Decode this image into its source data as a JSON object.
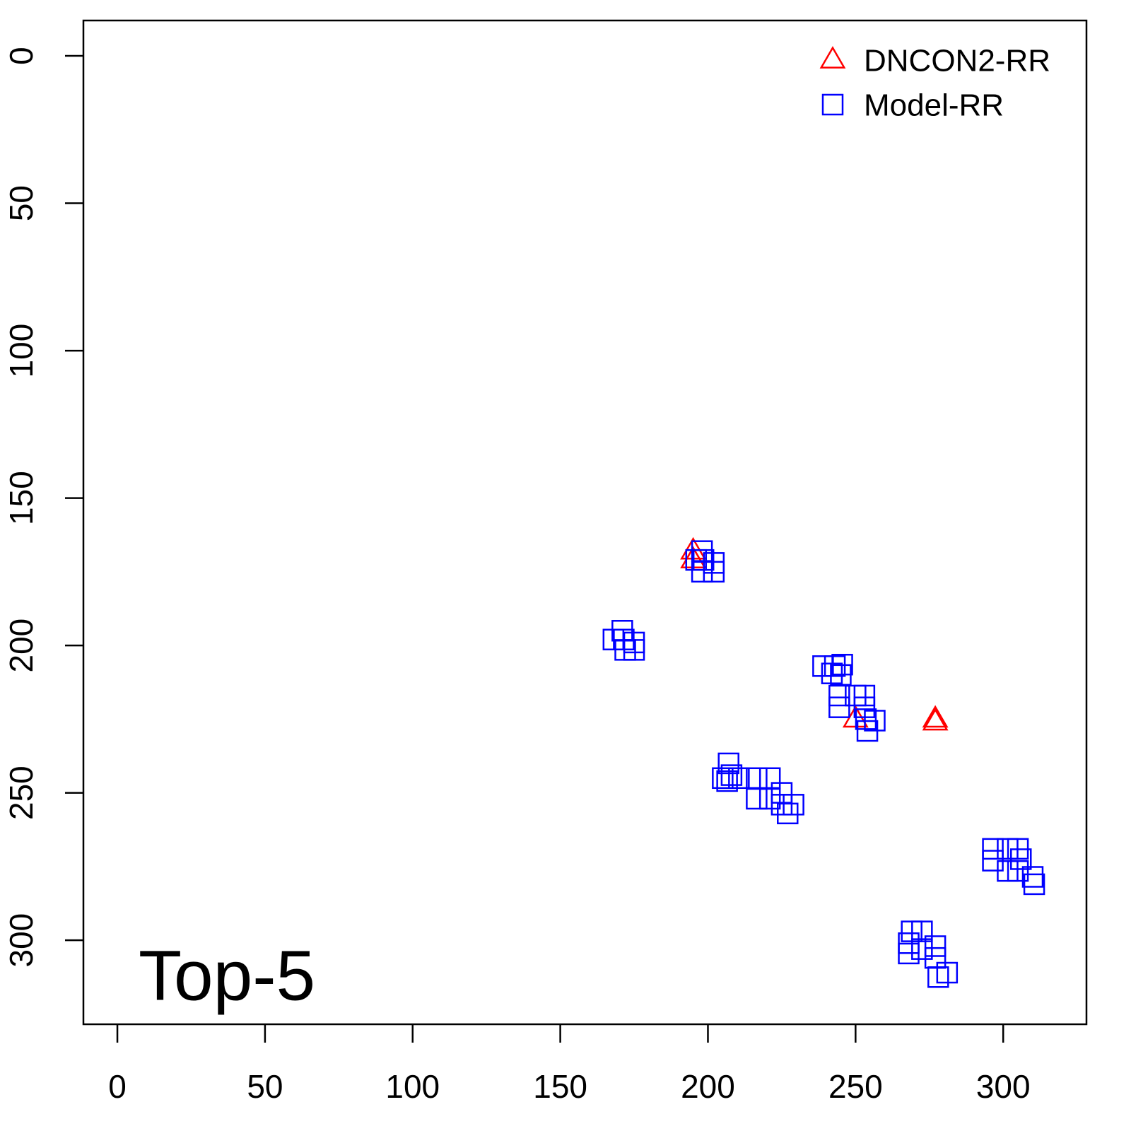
{
  "chart_data": {
    "type": "scatter",
    "annotation": "Top-5",
    "xlim": [
      -11.5,
      328.2
    ],
    "ylim": [
      328.5,
      -12
    ],
    "xticks": [
      0,
      50,
      100,
      150,
      200,
      250,
      300
    ],
    "yticks": [
      0,
      50,
      100,
      150,
      200,
      250,
      300
    ],
    "legend": "top-right",
    "series": [
      {
        "name": "DNCON2-RR",
        "color": "#ff0000",
        "marker": "triangle",
        "x": [
          195,
          195,
          250,
          277,
          277
        ],
        "y": [
          168,
          171,
          225,
          225,
          226
        ]
      },
      {
        "name": "Model-RR",
        "color": "#0000ff",
        "marker": "square",
        "x": [
          198,
          196,
          198.5,
          202,
          202,
          198,
          171,
          168,
          171.5,
          175,
          172,
          175,
          239,
          243,
          245.5,
          242,
          245,
          244.5,
          244.5,
          250,
          253,
          253,
          253.5,
          256.5,
          254,
          207,
          205,
          208,
          210.5,
          206.5,
          216.5,
          221,
          216.5,
          221,
          225,
          225,
          229,
          227,
          296.5,
          296.5,
          301.5,
          305,
          301.5,
          305,
          306,
          310,
          310.5,
          269,
          272.5,
          268,
          268,
          272.5,
          277,
          277,
          278,
          281
        ],
        "y": [
          168,
          171,
          171,
          172,
          175,
          175,
          195,
          198,
          198,
          199,
          201.5,
          201.5,
          207,
          207,
          206.5,
          209.5,
          210,
          217,
          221,
          217,
          217,
          221,
          225,
          225.5,
          229,
          240,
          245,
          244,
          245,
          246,
          245,
          245,
          252,
          252,
          250,
          254,
          254,
          257,
          269,
          273,
          269,
          269,
          276.5,
          276.5,
          272.5,
          278.5,
          281,
          297,
          297,
          301,
          304.5,
          303,
          302,
          306,
          312.5,
          311
        ]
      }
    ]
  }
}
